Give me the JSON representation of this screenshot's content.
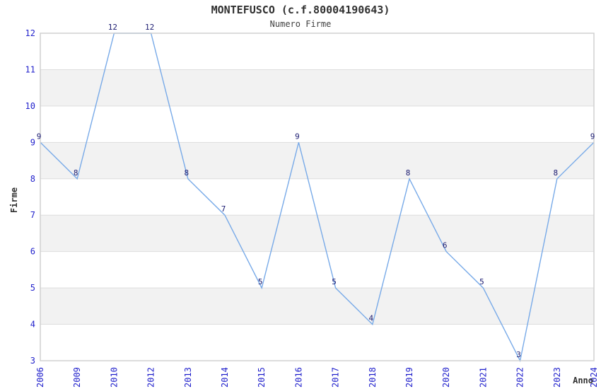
{
  "chart_data": {
    "type": "line",
    "title": "MONTEFUSCO (c.f.80004190643)",
    "subtitle": "Numero Firme",
    "xlabel": "Anno",
    "ylabel": "Firme",
    "categories": [
      "2006",
      "2009",
      "2010",
      "2012",
      "2013",
      "2014",
      "2015",
      "2016",
      "2017",
      "2018",
      "2019",
      "2020",
      "2021",
      "2022",
      "2023",
      "2024"
    ],
    "values": [
      9,
      8,
      12,
      12,
      8,
      7,
      5,
      9,
      5,
      4,
      8,
      6,
      5,
      3,
      8,
      9
    ],
    "ylim": [
      3,
      12
    ],
    "y_ticks": [
      3,
      4,
      5,
      6,
      7,
      8,
      9,
      10,
      11,
      12
    ],
    "grid": "horizontal-only",
    "legend": "none",
    "band_fill_ranges": [
      [
        4,
        5
      ],
      [
        6,
        7
      ],
      [
        8,
        9
      ],
      [
        10,
        11
      ]
    ],
    "colors": {
      "line": "#78aae8",
      "tick_label": "#2222cc",
      "point_label": "#1a1a70",
      "band": "#f2f2f2",
      "gridline": "#dddddd",
      "border": "#d0d0d0",
      "title": "#303030",
      "axis_label": "#303030"
    }
  }
}
